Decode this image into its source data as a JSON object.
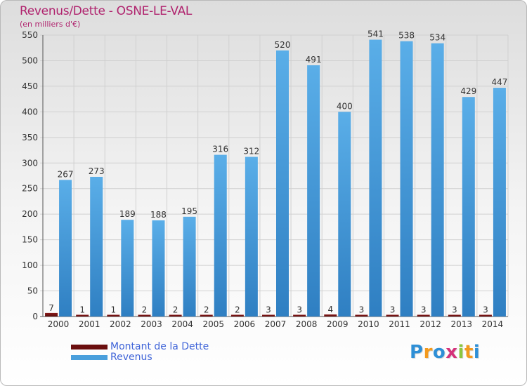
{
  "header": {
    "title": "Revenus/Dette - OSNE-LE-VAL",
    "subtitle": "(en milliers d'€)"
  },
  "legend": {
    "items": [
      {
        "label": "Montant de la Dette",
        "color": "#6b0f0f"
      },
      {
        "label": "Revenus",
        "color": "#4a9fdc"
      }
    ]
  },
  "logo": {
    "text": "Proxiti",
    "colors": [
      "#2e8fd6",
      "#f39a1e",
      "#2e8fd6",
      "#d4327a",
      "#8cc63f",
      "#f39a1e",
      "#2e8fd6"
    ]
  },
  "chart_data": {
    "type": "bar",
    "title": "Revenus/Dette - OSNE-LE-VAL",
    "subtitle": "(en milliers d'€)",
    "categories": [
      "2000",
      "2001",
      "2002",
      "2003",
      "2004",
      "2005",
      "2006",
      "2007",
      "2008",
      "2009",
      "2010",
      "2011",
      "2012",
      "2013",
      "2014"
    ],
    "series": [
      {
        "name": "Montant de la Dette",
        "color": "#6b0f0f",
        "values": [
          7,
          1,
          1,
          2,
          2,
          2,
          2,
          3,
          3,
          4,
          3,
          3,
          3,
          3,
          3
        ]
      },
      {
        "name": "Revenus",
        "color": "#4a9fdc",
        "values": [
          267,
          273,
          189,
          188,
          195,
          316,
          312,
          520,
          491,
          400,
          541,
          538,
          534,
          429,
          447
        ]
      }
    ],
    "ylim": [
      0,
      550
    ],
    "yticks": [
      0,
      50,
      100,
      150,
      200,
      250,
      300,
      350,
      400,
      450,
      500,
      550
    ],
    "grid": true,
    "legend_position": "bottom-left"
  }
}
